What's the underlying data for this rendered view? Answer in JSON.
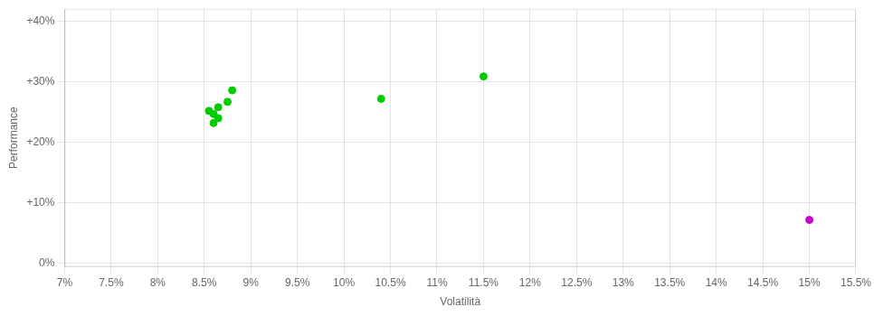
{
  "chart_data": {
    "type": "scatter",
    "xlabel": "Volatilità",
    "ylabel": "Performance",
    "xlim": [
      0.07,
      0.155
    ],
    "ylim": [
      -0.005,
      0.42
    ],
    "xticks": [
      {
        "value": 0.07,
        "label": "7%"
      },
      {
        "value": 0.075,
        "label": "7.5%"
      },
      {
        "value": 0.08,
        "label": "8%"
      },
      {
        "value": 0.085,
        "label": "8.5%"
      },
      {
        "value": 0.09,
        "label": "9%"
      },
      {
        "value": 0.095,
        "label": "9.5%"
      },
      {
        "value": 0.1,
        "label": "10%"
      },
      {
        "value": 0.105,
        "label": "10.5%"
      },
      {
        "value": 0.11,
        "label": "11%"
      },
      {
        "value": 0.115,
        "label": "11.5%"
      },
      {
        "value": 0.12,
        "label": "12%"
      },
      {
        "value": 0.125,
        "label": "12.5%"
      },
      {
        "value": 0.13,
        "label": "13%"
      },
      {
        "value": 0.135,
        "label": "13.5%"
      },
      {
        "value": 0.14,
        "label": "14%"
      },
      {
        "value": 0.145,
        "label": "14.5%"
      },
      {
        "value": 0.15,
        "label": "15%"
      },
      {
        "value": 0.155,
        "label": "15.5%"
      }
    ],
    "yticks": [
      {
        "value": 0.0,
        "label": "0%"
      },
      {
        "value": 0.1,
        "label": "+10%"
      },
      {
        "value": 0.2,
        "label": "+20%"
      },
      {
        "value": 0.3,
        "label": "+30%"
      },
      {
        "value": 0.4,
        "label": "+40%"
      }
    ],
    "grid": true,
    "series": [
      {
        "color": "#00cc00",
        "x": [
          0.088,
          0.0875,
          0.0865,
          0.0855,
          0.086,
          0.0865,
          0.086,
          0.104,
          0.115
        ],
        "y": [
          0.286,
          0.267,
          0.258,
          0.252,
          0.247,
          0.24,
          0.232,
          0.272,
          0.309
        ]
      },
      {
        "color": "#cc00cc",
        "x": [
          0.15
        ],
        "y": [
          0.072
        ]
      }
    ]
  }
}
